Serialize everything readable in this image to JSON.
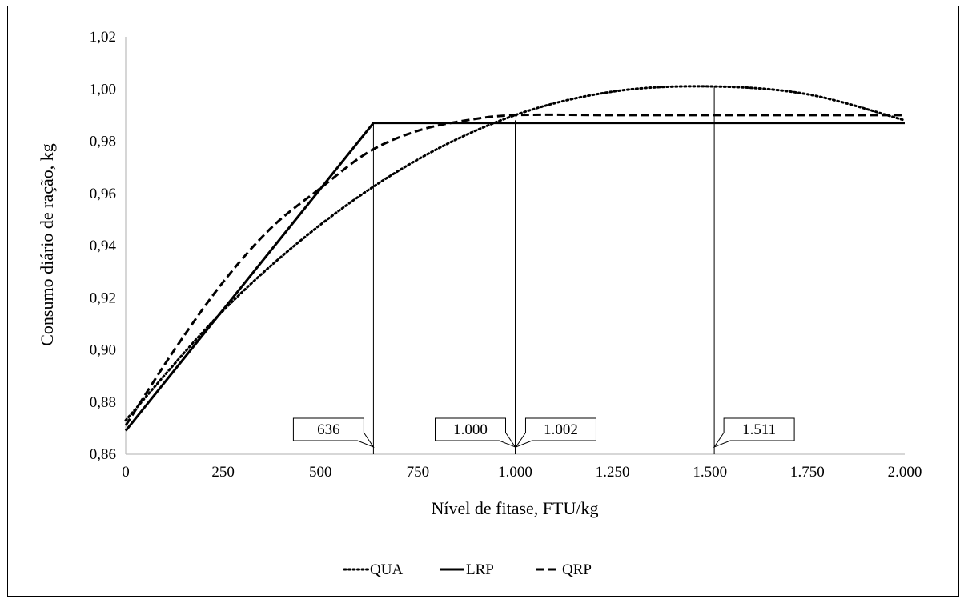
{
  "chart_data": {
    "type": "line",
    "xlabel": "Nível de fitase, FTU/kg",
    "ylabel": "Consumo diário de ração, kg",
    "xlim": [
      0,
      2000
    ],
    "ylim": [
      0.86,
      1.02
    ],
    "x_ticks": [
      0,
      250,
      500,
      750,
      1000,
      1250,
      1500,
      1750,
      2000
    ],
    "x_tick_labels": [
      "0",
      "250",
      "500",
      "750",
      "1.000",
      "1.250",
      "1.500",
      "1.750",
      "2.000"
    ],
    "y_ticks": [
      0.86,
      0.88,
      0.9,
      0.92,
      0.94,
      0.96,
      0.98,
      1.0,
      1.02
    ],
    "y_tick_labels": [
      "0,86",
      "0,88",
      "0,90",
      "0,92",
      "0,94",
      "0,96",
      "0,98",
      "1,00",
      "1,02"
    ],
    "grid": false,
    "legend_position": "bottom",
    "series": [
      {
        "name": "QUA",
        "style": "dotted",
        "x": [
          0,
          250,
          500,
          750,
          1000,
          1250,
          1500,
          1750,
          2000
        ],
        "y": [
          0.873,
          0.915,
          0.948,
          0.973,
          0.99,
          0.999,
          1.001,
          0.998,
          0.988
        ]
      },
      {
        "name": "LRP",
        "style": "solid",
        "x": [
          0,
          636,
          2000
        ],
        "y": [
          0.869,
          0.987,
          0.987
        ]
      },
      {
        "name": "QRP",
        "style": "dashed",
        "x": [
          0,
          125,
          250,
          375,
          500,
          625,
          750,
          875,
          1002,
          1250,
          1500,
          2000
        ],
        "y": [
          0.871,
          0.9,
          0.926,
          0.947,
          0.962,
          0.976,
          0.984,
          0.988,
          0.99,
          0.99,
          0.99,
          0.99
        ]
      }
    ],
    "callouts": [
      {
        "label": "636",
        "x": 636,
        "y": 0.987
      },
      {
        "label": "1.000",
        "x": 1000,
        "y": 0.988
      },
      {
        "label": "1.002",
        "x": 1002,
        "y": 0.99
      },
      {
        "label": "1.511",
        "x": 1511,
        "y": 1.001
      }
    ]
  }
}
